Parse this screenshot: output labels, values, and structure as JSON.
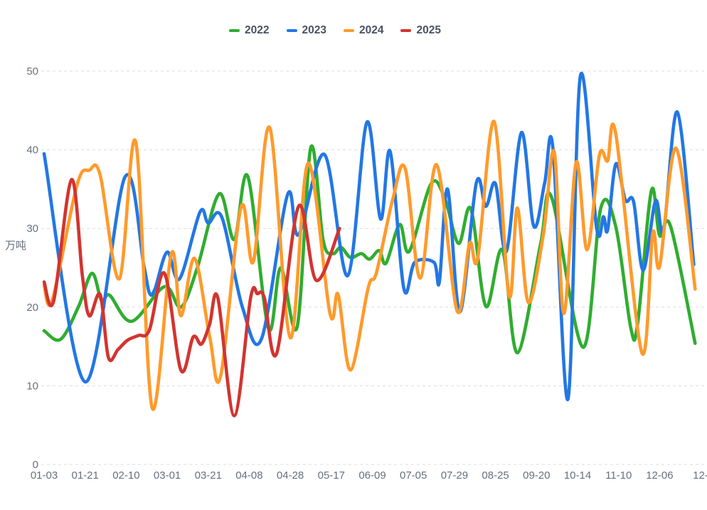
{
  "page": {
    "background": "#ffffff"
  },
  "legend": {
    "items": [
      {
        "label": "2022",
        "color": "#2fad30"
      },
      {
        "label": "2023",
        "color": "#2377e4"
      },
      {
        "label": "2024",
        "color": "#ff9a2b"
      },
      {
        "label": "2025",
        "color": "#d23430"
      }
    ]
  },
  "y_axis": {
    "name": "万吨",
    "range": [
      0,
      50
    ],
    "ticks": [
      "0",
      "10",
      "20",
      "30",
      "40",
      "50"
    ],
    "grid": "dashed"
  },
  "x_axis": {
    "ticks": [
      "01-03",
      "01-21",
      "02-10",
      "03-01",
      "03-21",
      "04-08",
      "04-28",
      "05-17",
      "06-09",
      "07-05",
      "07-29",
      "08-25",
      "09-20",
      "10-14",
      "11-10",
      "12-06",
      "12-"
    ]
  },
  "chart_data": {
    "type": "line",
    "title": "",
    "xlabel": "",
    "ylabel": "万吨",
    "ylim": [
      0,
      50
    ],
    "grid": true,
    "legend_position": "top-center",
    "x_note": "x is week index 0-48; axis tick labels are placed every 3 index units",
    "series": [
      {
        "name": "2022",
        "color": "#2fad30",
        "points": [
          [
            0,
            17
          ],
          [
            1.2,
            15.9
          ],
          [
            2.5,
            20
          ],
          [
            3.5,
            24.3
          ],
          [
            4.2,
            20.8
          ],
          [
            4.8,
            21.5
          ],
          [
            6.4,
            18.2
          ],
          [
            8.8,
            22.6
          ],
          [
            10,
            20
          ],
          [
            11.2,
            25
          ],
          [
            12.8,
            34.4
          ],
          [
            13.9,
            28.6
          ],
          [
            14.9,
            36.6
          ],
          [
            16.4,
            17.3
          ],
          [
            17.3,
            25
          ],
          [
            18.5,
            17.5
          ],
          [
            19.5,
            40.3
          ],
          [
            20.4,
            28.5
          ],
          [
            21.1,
            26.8
          ],
          [
            21.7,
            27.6
          ],
          [
            22.4,
            26.3
          ],
          [
            23.2,
            26.8
          ],
          [
            23.8,
            26.1
          ],
          [
            24.5,
            27.2
          ],
          [
            25,
            25.6
          ],
          [
            26,
            30.5
          ],
          [
            26.7,
            27.1
          ],
          [
            28.3,
            35.7
          ],
          [
            29.3,
            33.8
          ],
          [
            30.3,
            28.1
          ],
          [
            31.2,
            32.5
          ],
          [
            32.3,
            20.1
          ],
          [
            33.5,
            27.3
          ],
          [
            34.6,
            14.2
          ],
          [
            36.3,
            28
          ],
          [
            37.1,
            34
          ],
          [
            39.4,
            14.9
          ],
          [
            40.7,
            32.6
          ],
          [
            41.8,
            30.2
          ],
          [
            42.9,
            17.3
          ],
          [
            43.4,
            18
          ],
          [
            44.4,
            34.8
          ],
          [
            45,
            29.1
          ],
          [
            45.8,
            30.3
          ],
          [
            47.6,
            15.4
          ]
        ]
      },
      {
        "name": "2023",
        "color": "#2377e4",
        "points": [
          [
            0,
            39.5
          ],
          [
            3,
            10.5
          ],
          [
            5.9,
            36.5
          ],
          [
            7.3,
            25.2
          ],
          [
            7.7,
            21.8
          ],
          [
            8.1,
            22.3
          ],
          [
            9,
            27
          ],
          [
            9.9,
            23.6
          ],
          [
            11.4,
            32.1
          ],
          [
            12,
            30.7
          ],
          [
            13,
            31.4
          ],
          [
            14.5,
            20
          ],
          [
            15.9,
            16
          ],
          [
            17.8,
            34.3
          ],
          [
            18.6,
            29.2
          ],
          [
            20.5,
            39.4
          ],
          [
            22.2,
            24
          ],
          [
            23.6,
            43.5
          ],
          [
            24.6,
            31.2
          ],
          [
            25.3,
            39.8
          ],
          [
            26.3,
            22.4
          ],
          [
            27.1,
            25.7
          ],
          [
            28.5,
            25.7
          ],
          [
            28.9,
            23.2
          ],
          [
            29.5,
            35
          ],
          [
            30.4,
            19.4
          ],
          [
            31.6,
            35.8
          ],
          [
            32.3,
            32.8
          ],
          [
            33,
            35.7
          ],
          [
            33.8,
            27.1
          ],
          [
            34.9,
            42.2
          ],
          [
            35.8,
            30.3
          ],
          [
            36.6,
            35.8
          ],
          [
            37.2,
            40.2
          ],
          [
            38.3,
            8.3
          ],
          [
            39.2,
            49.3
          ],
          [
            40.4,
            30
          ],
          [
            40.9,
            31.5
          ],
          [
            41.2,
            29.8
          ],
          [
            41.8,
            38.2
          ],
          [
            42.5,
            33.6
          ],
          [
            43.1,
            33.4
          ],
          [
            43.8,
            24.7
          ],
          [
            44.7,
            33.5
          ],
          [
            45.3,
            29.8
          ],
          [
            46.3,
            44.8
          ],
          [
            47.5,
            25.4
          ]
        ]
      },
      {
        "name": "2024",
        "color": "#ff9a2b",
        "points": [
          [
            0,
            22.8
          ],
          [
            0.6,
            20.9
          ],
          [
            2.4,
            35.5
          ],
          [
            3.3,
            37.4
          ],
          [
            4.1,
            36.8
          ],
          [
            5.5,
            23.6
          ],
          [
            6.7,
            41
          ],
          [
            7.9,
            7.2
          ],
          [
            9.3,
            26.8
          ],
          [
            10,
            18.9
          ],
          [
            11,
            26.2
          ],
          [
            12.1,
            16.3
          ],
          [
            12.9,
            11.2
          ],
          [
            14.4,
            32.7
          ],
          [
            15.3,
            25.8
          ],
          [
            16.5,
            42.8
          ],
          [
            18,
            16.1
          ],
          [
            19.3,
            38.3
          ],
          [
            20.9,
            19.2
          ],
          [
            21.5,
            21.6
          ],
          [
            22.4,
            12
          ],
          [
            23.7,
            22.5
          ],
          [
            24.3,
            24.4
          ],
          [
            25.5,
            33.8
          ],
          [
            26.4,
            37.6
          ],
          [
            27.5,
            23.7
          ],
          [
            28.7,
            38.1
          ],
          [
            30.2,
            19.5
          ],
          [
            31.1,
            28.1
          ],
          [
            31.7,
            26.2
          ],
          [
            32.9,
            43.6
          ],
          [
            34,
            21.4
          ],
          [
            34.6,
            32.6
          ],
          [
            35.4,
            20.6
          ],
          [
            36.5,
            29.2
          ],
          [
            37.3,
            39.7
          ],
          [
            38,
            19.2
          ],
          [
            38.9,
            38.4
          ],
          [
            39.7,
            27.3
          ],
          [
            40.6,
            39.3
          ],
          [
            41.2,
            38.6
          ],
          [
            41.8,
            42
          ],
          [
            43.7,
            14.2
          ],
          [
            44.5,
            29.4
          ],
          [
            45,
            25.2
          ],
          [
            46.2,
            40.2
          ],
          [
            47.6,
            22.3
          ]
        ]
      },
      {
        "name": "2025",
        "color": "#d23430",
        "points": [
          [
            0,
            23.2
          ],
          [
            0.7,
            20.8
          ],
          [
            2,
            36.2
          ],
          [
            2.8,
            24
          ],
          [
            3.3,
            18.9
          ],
          [
            4.1,
            21.6
          ],
          [
            4.7,
            13.6
          ],
          [
            5.4,
            14.6
          ],
          [
            6.1,
            15.8
          ],
          [
            6.9,
            16.4
          ],
          [
            7.7,
            17.1
          ],
          [
            8.8,
            24.3
          ],
          [
            10,
            12
          ],
          [
            10.9,
            16.2
          ],
          [
            11.5,
            15.3
          ],
          [
            12.1,
            17.8
          ],
          [
            12.7,
            21.2
          ],
          [
            13.9,
            6.2
          ],
          [
            15.1,
            21.2
          ],
          [
            15.6,
            21.7
          ],
          [
            16.1,
            21.2
          ],
          [
            17,
            14.1
          ],
          [
            18.6,
            32.8
          ],
          [
            19.9,
            23.4
          ],
          [
            21.6,
            30
          ]
        ]
      }
    ],
    "style": {
      "line_width": 4.6,
      "smooth": true,
      "grid_color": "#d9dce2",
      "tick_color": "#67707f"
    }
  }
}
